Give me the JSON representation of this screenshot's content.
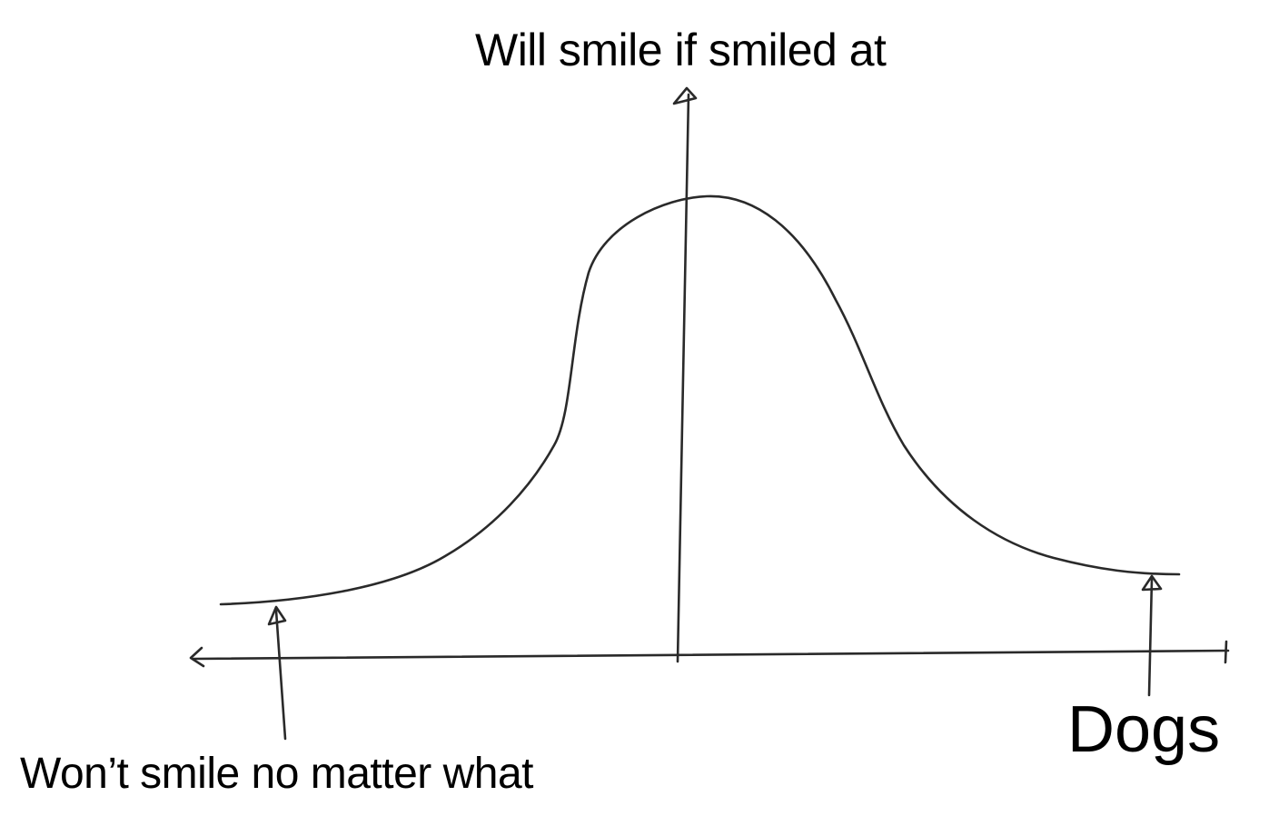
{
  "annotations": {
    "top": "Will smile if smiled at",
    "bottom_left": "Won’t smile no matter what",
    "bottom_right": "Dogs"
  },
  "colors": {
    "stroke": "#2a2a2a",
    "text": "#000000",
    "background": "#ffffff"
  }
}
